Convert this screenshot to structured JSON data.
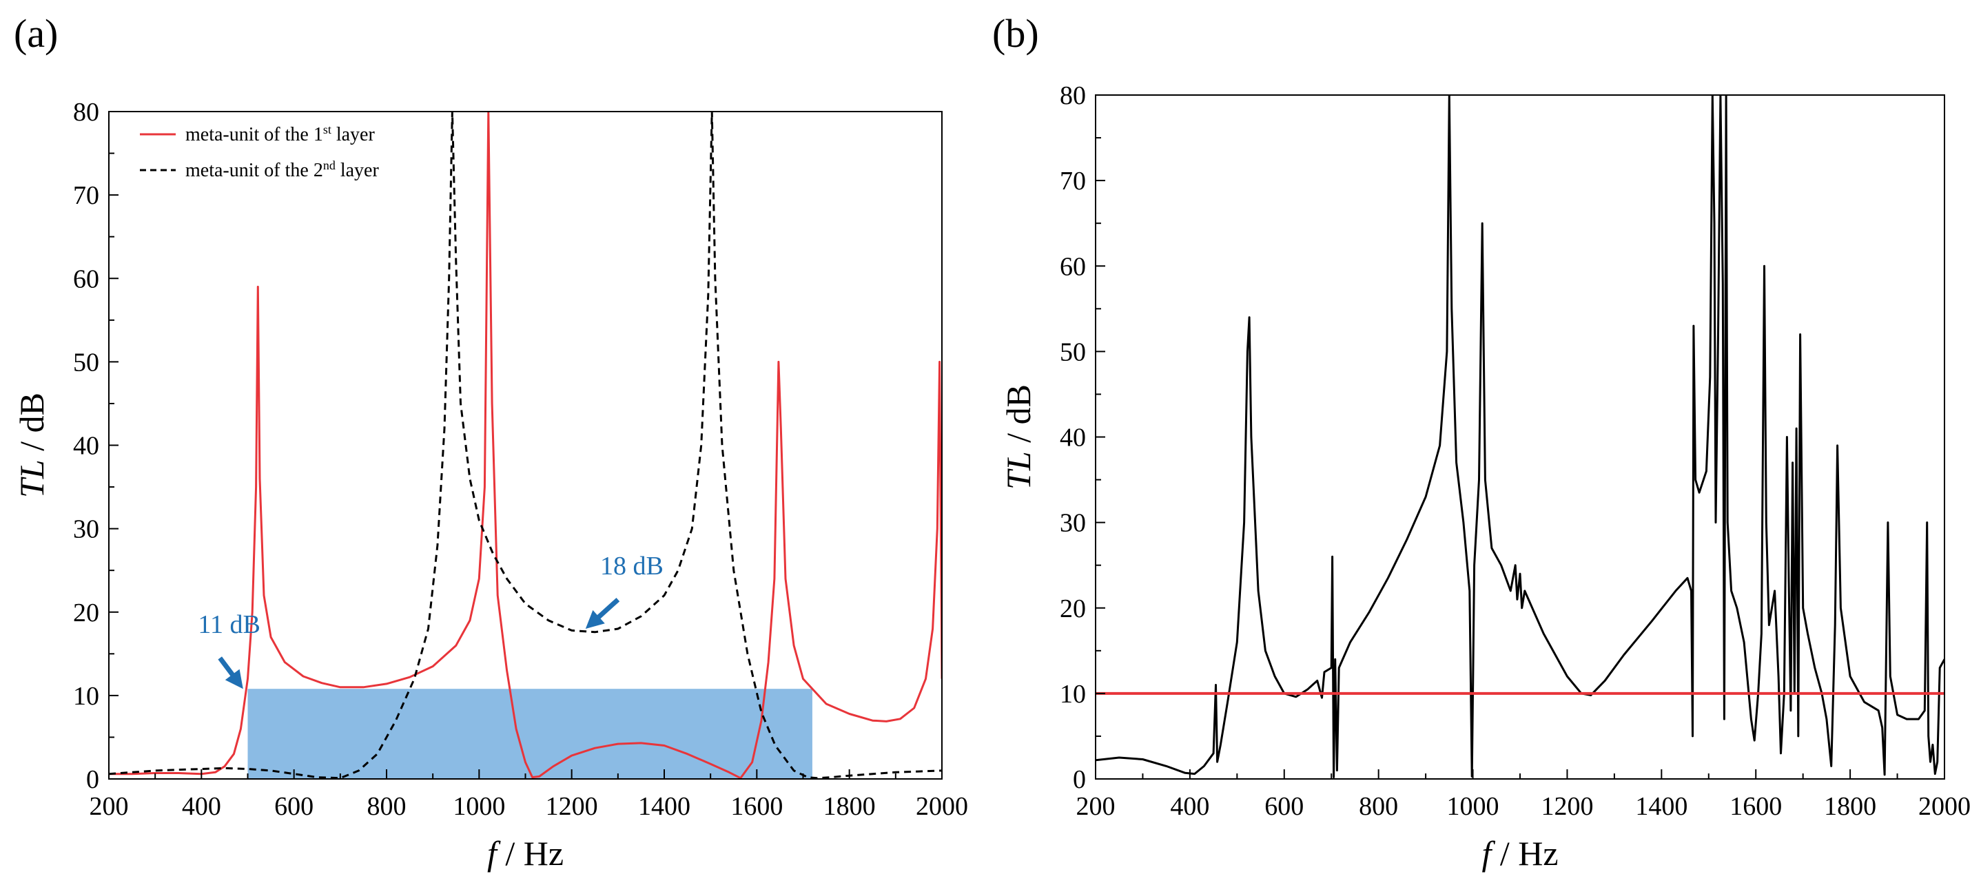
{
  "figure": {
    "panels": [
      "(a)",
      "(b)"
    ]
  },
  "chart_data": [
    {
      "type": "line",
      "panel": "(a)",
      "title": "",
      "xlabel": {
        "italic": "f",
        "rest": " / Hz"
      },
      "ylabel": {
        "italic": "TL",
        "rest": " / dB"
      },
      "xlim": [
        200,
        2000
      ],
      "ylim": [
        0,
        80
      ],
      "xticks": [
        200,
        400,
        600,
        800,
        1000,
        1200,
        1400,
        1600,
        1800,
        2000
      ],
      "yticks": [
        0,
        10,
        20,
        30,
        40,
        50,
        60,
        70,
        80
      ],
      "legend_position": "top-left",
      "series": [
        {
          "name": "meta-unit of the 1st layer",
          "legend": {
            "prefix": "meta-unit of the 1",
            "sup": "st",
            "suffix": " layer"
          },
          "style": "solid",
          "color": "#e8353a",
          "points": [
            [
              200,
              0.6
            ],
            [
              250,
              0.6
            ],
            [
              300,
              0.7
            ],
            [
              350,
              0.7
            ],
            [
              400,
              0.6
            ],
            [
              430,
              0.8
            ],
            [
              450,
              1.5
            ],
            [
              470,
              3
            ],
            [
              485,
              6
            ],
            [
              500,
              12
            ],
            [
              510,
              20
            ],
            [
              518,
              35
            ],
            [
              522,
              59
            ],
            [
              526,
              36
            ],
            [
              535,
              22
            ],
            [
              550,
              17
            ],
            [
              580,
              14
            ],
            [
              620,
              12.3
            ],
            [
              660,
              11.5
            ],
            [
              700,
              11
            ],
            [
              750,
              11
            ],
            [
              800,
              11.4
            ],
            [
              850,
              12.2
            ],
            [
              900,
              13.5
            ],
            [
              950,
              16
            ],
            [
              980,
              19
            ],
            [
              1000,
              24
            ],
            [
              1012,
              35
            ],
            [
              1020,
              80
            ],
            [
              1028,
              45
            ],
            [
              1040,
              22
            ],
            [
              1060,
              13
            ],
            [
              1080,
              6
            ],
            [
              1100,
              2
            ],
            [
              1115,
              0.2
            ],
            [
              1130,
              0.3
            ],
            [
              1160,
              1.5
            ],
            [
              1200,
              2.8
            ],
            [
              1250,
              3.7
            ],
            [
              1300,
              4.2
            ],
            [
              1350,
              4.3
            ],
            [
              1400,
              4
            ],
            [
              1450,
              3
            ],
            [
              1500,
              1.8
            ],
            [
              1540,
              0.8
            ],
            [
              1565,
              0.1
            ],
            [
              1590,
              2
            ],
            [
              1610,
              7
            ],
            [
              1625,
              14
            ],
            [
              1638,
              24
            ],
            [
              1647,
              50
            ],
            [
              1652,
              42
            ],
            [
              1662,
              24
            ],
            [
              1680,
              16
            ],
            [
              1700,
              12
            ],
            [
              1750,
              9
            ],
            [
              1800,
              7.8
            ],
            [
              1850,
              7
            ],
            [
              1880,
              6.9
            ],
            [
              1910,
              7.2
            ],
            [
              1940,
              8.5
            ],
            [
              1965,
              12
            ],
            [
              1980,
              18
            ],
            [
              1990,
              30
            ],
            [
              1995,
              50
            ],
            [
              2000,
              12
            ]
          ]
        },
        {
          "name": "meta-unit of the 2nd layer",
          "legend": {
            "prefix": "meta-unit of the 2",
            "sup": "nd",
            "suffix": " layer"
          },
          "style": "dashed",
          "color": "#000000",
          "points": [
            [
              200,
              0.6
            ],
            [
              250,
              0.8
            ],
            [
              300,
              1
            ],
            [
              350,
              1.1
            ],
            [
              400,
              1.2
            ],
            [
              450,
              1.3
            ],
            [
              500,
              1.2
            ],
            [
              550,
              1
            ],
            [
              600,
              0.6
            ],
            [
              650,
              0.2
            ],
            [
              700,
              0.1
            ],
            [
              740,
              1
            ],
            [
              780,
              3
            ],
            [
              820,
              7
            ],
            [
              860,
              12
            ],
            [
              890,
              18
            ],
            [
              910,
              28
            ],
            [
              925,
              42
            ],
            [
              935,
              60
            ],
            [
              942,
              80
            ],
            [
              950,
              62
            ],
            [
              960,
              45
            ],
            [
              980,
              36
            ],
            [
              1000,
              31
            ],
            [
              1030,
              27
            ],
            [
              1060,
              24
            ],
            [
              1100,
              21
            ],
            [
              1150,
              19
            ],
            [
              1200,
              17.8
            ],
            [
              1250,
              17.6
            ],
            [
              1300,
              18
            ],
            [
              1350,
              19.5
            ],
            [
              1400,
              22
            ],
            [
              1430,
              25
            ],
            [
              1460,
              30
            ],
            [
              1480,
              40
            ],
            [
              1495,
              58
            ],
            [
              1503,
              80
            ],
            [
              1510,
              60
            ],
            [
              1525,
              40
            ],
            [
              1550,
              25
            ],
            [
              1580,
              15
            ],
            [
              1610,
              8
            ],
            [
              1640,
              4
            ],
            [
              1680,
              1
            ],
            [
              1710,
              0.2
            ],
            [
              1730,
              0.1
            ],
            [
              1760,
              0.2
            ],
            [
              1800,
              0.4
            ],
            [
              1850,
              0.6
            ],
            [
              1900,
              0.8
            ],
            [
              1950,
              0.9
            ],
            [
              2000,
              1
            ]
          ]
        }
      ],
      "shaded_band": {
        "x_start": 500,
        "x_end": 1720,
        "y_start": 0,
        "y_end": 10.8,
        "color": "#6aa8dd"
      },
      "annotations": [
        {
          "text": "11 dB",
          "text_x": 460,
          "text_y": 17.5,
          "arrow_from": [
            440,
            14.5
          ],
          "arrow_to": [
            490,
            10.8
          ]
        },
        {
          "text": "18 dB",
          "text_x": 1330,
          "text_y": 24.5,
          "arrow_from": [
            1300,
            21.5
          ],
          "arrow_to": [
            1230,
            18
          ]
        }
      ]
    },
    {
      "type": "line",
      "panel": "(b)",
      "title": "",
      "xlabel": {
        "italic": "f",
        "rest": " / Hz"
      },
      "ylabel": {
        "italic": "TL",
        "rest": " / dB"
      },
      "xlim": [
        200,
        2000
      ],
      "ylim": [
        0,
        80
      ],
      "xticks": [
        200,
        400,
        600,
        800,
        1000,
        1200,
        1400,
        1600,
        1800,
        2000
      ],
      "yticks": [
        0,
        10,
        20,
        30,
        40,
        50,
        60,
        70,
        80
      ],
      "hline": {
        "y": 10,
        "color": "#e8353a"
      },
      "series": [
        {
          "name": "TL",
          "style": "solid",
          "color": "#000000",
          "points": [
            [
              200,
              2.2
            ],
            [
              250,
              2.5
            ],
            [
              300,
              2.3
            ],
            [
              350,
              1.5
            ],
            [
              390,
              0.7
            ],
            [
              410,
              0.6
            ],
            [
              430,
              1.5
            ],
            [
              450,
              3
            ],
            [
              455,
              11
            ],
            [
              458,
              2
            ],
            [
              465,
              4
            ],
            [
              480,
              9
            ],
            [
              500,
              16
            ],
            [
              515,
              30
            ],
            [
              522,
              50
            ],
            [
              526,
              54
            ],
            [
              530,
              40
            ],
            [
              545,
              22
            ],
            [
              560,
              15
            ],
            [
              580,
              12
            ],
            [
              600,
              10
            ],
            [
              625,
              9.6
            ],
            [
              650,
              10.5
            ],
            [
              670,
              11.5
            ],
            [
              680,
              9.5
            ],
            [
              685,
              12.5
            ],
            [
              700,
              13
            ],
            [
              702,
              26
            ],
            [
              705,
              0.2
            ],
            [
              708,
              14
            ],
            [
              712,
              1
            ],
            [
              716,
              13
            ],
            [
              740,
              16
            ],
            [
              780,
              19.5
            ],
            [
              820,
              23.5
            ],
            [
              860,
              28
            ],
            [
              900,
              33
            ],
            [
              930,
              39
            ],
            [
              945,
              50
            ],
            [
              950,
              80
            ],
            [
              955,
              55
            ],
            [
              965,
              37
            ],
            [
              980,
              30
            ],
            [
              993,
              22
            ],
            [
              998,
              0.3
            ],
            [
              1003,
              25
            ],
            [
              1013,
              35
            ],
            [
              1020,
              65
            ],
            [
              1026,
              35
            ],
            [
              1040,
              27
            ],
            [
              1060,
              25
            ],
            [
              1080,
              22
            ],
            [
              1090,
              25
            ],
            [
              1094,
              21
            ],
            [
              1100,
              24
            ],
            [
              1104,
              20
            ],
            [
              1110,
              22
            ],
            [
              1150,
              17
            ],
            [
              1200,
              12
            ],
            [
              1230,
              10
            ],
            [
              1250,
              9.8
            ],
            [
              1280,
              11.5
            ],
            [
              1320,
              14.5
            ],
            [
              1380,
              18.5
            ],
            [
              1430,
              22
            ],
            [
              1455,
              23.5
            ],
            [
              1463,
              22
            ],
            [
              1466,
              5
            ],
            [
              1468,
              53
            ],
            [
              1472,
              35
            ],
            [
              1480,
              33.5
            ],
            [
              1495,
              36
            ],
            [
              1503,
              47
            ],
            [
              1508,
              80
            ],
            [
              1512,
              65
            ],
            [
              1515,
              30
            ],
            [
              1520,
              52
            ],
            [
              1525,
              80
            ],
            [
              1530,
              58
            ],
            [
              1533,
              7
            ],
            [
              1537,
              80
            ],
            [
              1540,
              30
            ],
            [
              1548,
              22
            ],
            [
              1560,
              20
            ],
            [
              1575,
              16
            ],
            [
              1590,
              7
            ],
            [
              1597,
              4.5
            ],
            [
              1605,
              10
            ],
            [
              1612,
              17
            ],
            [
              1618,
              60
            ],
            [
              1622,
              30
            ],
            [
              1628,
              18
            ],
            [
              1640,
              22
            ],
            [
              1648,
              12
            ],
            [
              1653,
              3
            ],
            [
              1660,
              10
            ],
            [
              1666,
              40
            ],
            [
              1670,
              23
            ],
            [
              1674,
              8
            ],
            [
              1678,
              37
            ],
            [
              1682,
              10
            ],
            [
              1686,
              41
            ],
            [
              1690,
              5
            ],
            [
              1694,
              52
            ],
            [
              1700,
              20
            ],
            [
              1710,
              17
            ],
            [
              1725,
              13
            ],
            [
              1740,
              10
            ],
            [
              1750,
              7
            ],
            [
              1760,
              1.5
            ],
            [
              1768,
              18
            ],
            [
              1773,
              39
            ],
            [
              1780,
              20
            ],
            [
              1800,
              12
            ],
            [
              1830,
              9
            ],
            [
              1860,
              8
            ],
            [
              1868,
              6
            ],
            [
              1873,
              0.5
            ],
            [
              1880,
              30
            ],
            [
              1885,
              12
            ],
            [
              1900,
              7.5
            ],
            [
              1920,
              7
            ],
            [
              1945,
              7
            ],
            [
              1958,
              8
            ],
            [
              1963,
              30
            ],
            [
              1966,
              5
            ],
            [
              1970,
              2
            ],
            [
              1975,
              4
            ],
            [
              1980,
              0.6
            ],
            [
              1985,
              2
            ],
            [
              1990,
              13
            ],
            [
              2000,
              14
            ]
          ]
        }
      ]
    }
  ]
}
